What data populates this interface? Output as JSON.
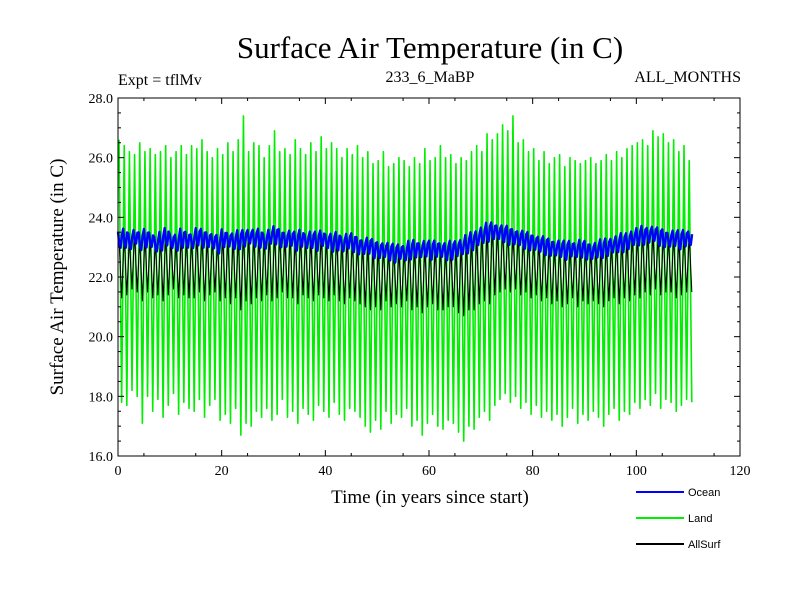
{
  "chart_data": {
    "type": "line",
    "title": "Surface Air Temperature (in C)",
    "subtitle_left": "Expt = tflMv",
    "subtitle_center": "233_6_MaBP",
    "subtitle_right": "ALL_MONTHS",
    "xlabel": "Time (in years since start)",
    "ylabel": "Surface Air Temperature (in C)",
    "xlim": [
      0,
      120
    ],
    "ylim": [
      16.0,
      28.0
    ],
    "x_ticks": [
      0,
      20,
      40,
      60,
      80,
      100,
      120
    ],
    "x_tick_labels": [
      "0",
      "20",
      "40",
      "60",
      "80",
      "100",
      "120"
    ],
    "y_ticks": [
      16.0,
      18.0,
      20.0,
      22.0,
      24.0,
      26.0,
      28.0
    ],
    "y_tick_labels": [
      "16.0",
      "18.0",
      "20.0",
      "22.0",
      "24.0",
      "26.0",
      "28.0"
    ],
    "grid": false,
    "legend_position": "bottom-right, outside plot",
    "series": [
      {
        "name": "Land",
        "color": "#00ee00",
        "x_range": [
          0,
          110
        ],
        "seasonal_max": [
          26.6,
          26.4,
          26.2,
          26.1,
          26.5,
          26.2,
          26.3,
          26.1,
          26.2,
          26.4,
          26.0,
          26.2,
          26.4,
          26.1,
          26.4,
          26.3,
          26.6,
          26.2,
          26.0,
          26.3,
          26.1,
          26.5,
          26.2,
          26.6,
          27.4,
          26.2,
          26.5,
          26.4,
          26.0,
          26.4,
          26.9,
          26.2,
          26.3,
          26.1,
          26.6,
          26.3,
          26.1,
          26.5,
          26.2,
          26.7,
          26.3,
          26.5,
          26.3,
          26.0,
          26.3,
          26.1,
          26.4,
          26.0,
          26.2,
          25.8,
          25.9,
          26.2,
          25.7,
          25.8,
          26.0,
          25.9,
          25.7,
          26.0,
          25.8,
          26.3,
          25.9,
          26.0,
          26.4,
          26.0,
          26.1,
          25.8,
          26.0,
          25.9,
          26.2,
          26.4,
          26.2,
          26.8,
          26.6,
          26.8,
          27.1,
          26.9,
          27.4,
          26.5,
          26.6,
          26.2,
          26.3,
          25.9,
          26.2,
          25.8,
          26.0,
          26.1,
          25.7,
          26.0,
          25.9,
          25.8,
          25.9,
          26.0,
          25.8,
          25.9,
          26.1,
          25.9,
          26.2,
          26.0,
          26.3,
          26.4,
          26.5,
          26.6,
          26.4,
          26.9,
          26.7,
          26.8,
          26.5,
          26.6,
          26.2,
          26.4,
          25.9
        ],
        "seasonal_min": [
          17.8,
          17.7,
          18.2,
          18.0,
          17.1,
          18.0,
          17.5,
          17.9,
          17.3,
          17.7,
          18.1,
          17.4,
          17.8,
          17.6,
          17.5,
          17.9,
          17.3,
          17.7,
          17.9,
          17.2,
          17.4,
          17.1,
          17.6,
          16.7,
          17.1,
          17.0,
          17.5,
          17.3,
          17.6,
          17.2,
          17.4,
          17.9,
          17.3,
          17.5,
          17.1,
          17.6,
          17.4,
          17.2,
          17.7,
          17.5,
          17.3,
          17.8,
          17.4,
          17.2,
          17.6,
          17.5,
          17.3,
          17.0,
          16.8,
          17.2,
          16.9,
          17.5,
          17.1,
          17.4,
          17.3,
          17.6,
          17.0,
          17.2,
          16.7,
          17.1,
          17.4,
          17.0,
          16.9,
          17.2,
          17.1,
          16.8,
          16.5,
          17.0,
          16.9,
          17.3,
          17.5,
          17.2,
          17.7,
          17.9,
          18.1,
          17.8,
          18.0,
          17.6,
          17.8,
          17.4,
          17.7,
          17.3,
          17.5,
          17.2,
          17.4,
          17.0,
          17.3,
          17.6,
          17.1,
          17.4,
          17.2,
          17.5,
          17.3,
          17.0,
          17.4,
          17.6,
          17.2,
          17.5,
          17.4,
          17.8,
          17.6,
          17.9,
          17.7,
          18.1,
          17.6,
          17.9,
          17.8,
          17.5,
          17.7,
          17.9,
          17.8
        ]
      },
      {
        "name": "Ocean",
        "color": "#0000ff",
        "x_range": [
          0,
          110
        ],
        "mean": [
          23.25,
          23.3,
          23.2,
          23.35,
          23.2,
          23.3,
          23.25,
          23.1,
          23.2,
          23.35,
          23.2,
          23.15,
          23.3,
          23.25,
          23.2,
          23.35,
          23.3,
          23.25,
          23.2,
          23.1,
          23.3,
          23.25,
          23.2,
          23.25,
          23.3,
          23.35,
          23.3,
          23.3,
          23.2,
          23.35,
          23.4,
          23.3,
          23.25,
          23.3,
          23.2,
          23.3,
          23.2,
          23.25,
          23.2,
          23.3,
          23.2,
          23.15,
          23.2,
          23.1,
          23.2,
          23.15,
          23.05,
          23.0,
          23.05,
          22.95,
          22.9,
          22.9,
          22.85,
          22.8,
          22.85,
          22.8,
          22.9,
          22.95,
          22.9,
          22.95,
          22.9,
          22.95,
          22.9,
          22.85,
          22.9,
          22.95,
          23.0,
          23.1,
          23.2,
          23.3,
          23.4,
          23.5,
          23.55,
          23.5,
          23.45,
          23.4,
          23.35,
          23.3,
          23.25,
          23.2,
          23.15,
          23.1,
          23.05,
          23.0,
          22.95,
          22.95,
          22.9,
          22.95,
          22.9,
          22.95,
          22.9,
          22.85,
          22.9,
          22.95,
          23.0,
          23.05,
          23.1,
          23.15,
          23.2,
          23.3,
          23.35,
          23.4,
          23.4,
          23.45,
          23.35,
          23.3,
          23.25,
          23.3,
          23.25,
          23.3,
          23.3
        ],
        "seasonal_half_amplitude": 0.32
      },
      {
        "name": "AllSurf",
        "color": "#000000",
        "x_range": [
          0,
          110
        ],
        "seasonal_max": [
          23.3,
          23.4,
          23.3,
          23.5,
          23.3,
          23.4,
          23.3,
          23.2,
          23.3,
          23.4,
          23.3,
          23.2,
          23.4,
          23.3,
          23.3,
          23.4,
          23.4,
          23.3,
          23.3,
          23.2,
          23.4,
          23.3,
          23.3,
          23.3,
          23.5,
          23.4,
          23.4,
          23.4,
          23.3,
          23.4,
          23.5,
          23.4,
          23.3,
          23.4,
          23.3,
          23.4,
          23.3,
          23.3,
          23.3,
          23.4,
          23.3,
          23.2,
          23.3,
          23.2,
          23.3,
          23.2,
          23.1,
          23.1,
          23.1,
          23.0,
          23.0,
          23.0,
          22.9,
          22.9,
          22.9,
          22.9,
          23.0,
          23.0,
          23.0,
          23.0,
          23.0,
          23.0,
          23.0,
          22.9,
          23.0,
          23.0,
          23.1,
          23.2,
          23.3,
          23.4,
          23.5,
          23.6,
          23.7,
          23.6,
          23.6,
          23.5,
          23.4,
          23.4,
          23.3,
          23.3,
          23.2,
          23.2,
          23.1,
          23.1,
          23.0,
          23.0,
          23.0,
          23.0,
          23.0,
          23.0,
          23.0,
          22.9,
          23.0,
          23.0,
          23.1,
          23.1,
          23.2,
          23.2,
          23.3,
          23.4,
          23.4,
          23.5,
          23.5,
          23.5,
          23.4,
          23.4,
          23.3,
          23.4,
          23.3,
          23.4,
          23.4
        ],
        "seasonal_min": [
          21.3,
          21.4,
          21.6,
          21.5,
          21.2,
          21.5,
          21.3,
          21.4,
          21.2,
          21.4,
          21.6,
          21.3,
          21.4,
          21.3,
          21.3,
          21.5,
          21.2,
          21.4,
          21.5,
          21.2,
          21.3,
          21.1,
          21.3,
          20.9,
          21.2,
          21.1,
          21.3,
          21.2,
          21.4,
          21.2,
          21.3,
          21.5,
          21.3,
          21.3,
          21.1,
          21.4,
          21.3,
          21.2,
          21.4,
          21.3,
          21.2,
          21.4,
          21.2,
          21.1,
          21.3,
          21.2,
          21.1,
          21.0,
          20.9,
          21.0,
          20.9,
          21.2,
          21.0,
          21.1,
          21.0,
          21.2,
          20.9,
          21.0,
          20.8,
          21.0,
          21.1,
          20.9,
          20.9,
          21.0,
          21.0,
          20.8,
          20.7,
          20.9,
          20.9,
          21.1,
          21.2,
          21.1,
          21.4,
          21.5,
          21.6,
          21.5,
          21.6,
          21.4,
          21.5,
          21.3,
          21.4,
          21.2,
          21.3,
          21.1,
          21.2,
          21.0,
          21.1,
          21.3,
          21.0,
          21.2,
          21.1,
          21.2,
          21.1,
          21.0,
          21.2,
          21.3,
          21.1,
          21.3,
          21.2,
          21.4,
          21.3,
          21.5,
          21.4,
          21.6,
          21.4,
          21.5,
          21.5,
          21.3,
          21.4,
          21.5,
          21.5
        ]
      }
    ]
  },
  "legend": {
    "items": [
      {
        "label": "Ocean",
        "color": "#0000ff"
      },
      {
        "label": "Land",
        "color": "#00ee00"
      },
      {
        "label": "AllSurf",
        "color": "#000000"
      }
    ]
  }
}
